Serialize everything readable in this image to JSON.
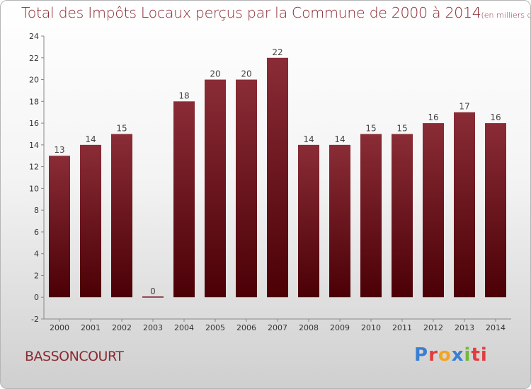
{
  "chart_data": {
    "type": "bar",
    "title": "Total des Impôts Locaux perçus par la Commune de 2000 à 2014",
    "unit_note": "(en milliers d'€)",
    "categories": [
      "2000",
      "2001",
      "2002",
      "2003",
      "2004",
      "2005",
      "2006",
      "2007",
      "2008",
      "2009",
      "2010",
      "2011",
      "2012",
      "2013",
      "2014"
    ],
    "values": [
      13,
      14,
      15,
      0,
      18,
      20,
      20,
      22,
      14,
      14,
      15,
      15,
      16,
      17,
      16
    ],
    "ylim": [
      -2,
      24
    ],
    "yticks": [
      -2,
      0,
      2,
      4,
      6,
      8,
      10,
      12,
      14,
      16,
      18,
      20,
      22,
      24
    ],
    "xlabel": "",
    "ylabel": "",
    "grid": false,
    "bar_color": "#5c0a12"
  },
  "commune": "BASSONCOURT",
  "logo": {
    "letters": [
      "P",
      "r",
      "o",
      "x",
      "i",
      "ti"
    ]
  }
}
